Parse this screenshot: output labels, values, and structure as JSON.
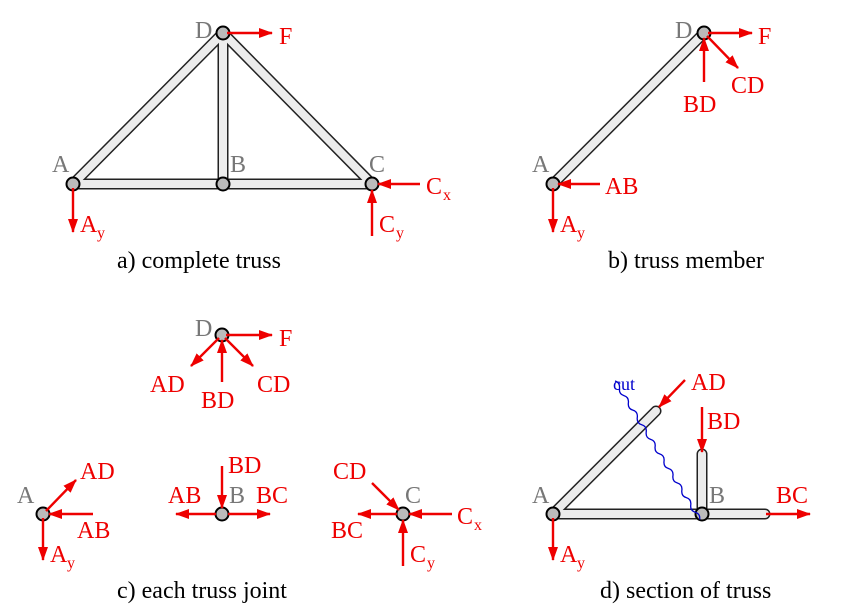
{
  "panel_a": {
    "caption": "a) complete truss",
    "labels": {
      "A": "A",
      "B": "B",
      "C": "C",
      "D": "D"
    },
    "forces": {
      "F": "F",
      "Ay": "A",
      "Ay_sub": "y",
      "Cx": "C",
      "Cx_sub": "x",
      "Cy": "C",
      "Cy_sub": "y"
    }
  },
  "panel_b": {
    "caption": "b) truss member",
    "labels": {
      "A": "A",
      "D": "D"
    },
    "forces": {
      "F": "F",
      "BD": "BD",
      "CD": "CD",
      "AB": "AB",
      "Ay": "A",
      "Ay_sub": "y"
    }
  },
  "panel_c": {
    "caption": "c) each truss joint",
    "labels": {
      "A": "A",
      "B": "B",
      "C": "C",
      "D": "D"
    },
    "forces": {
      "D_F": "F",
      "D_AD": "AD",
      "D_BD": "BD",
      "D_CD": "CD",
      "A_AD": "AD",
      "A_AB": "AB",
      "A_Ay": "A",
      "A_Ay_sub": "y",
      "B_BD": "BD",
      "B_AB": "AB",
      "B_BC": "BC",
      "C_CD": "CD",
      "C_BC": "BC",
      "C_Cx": "C",
      "C_Cx_sub": "x",
      "C_Cy": "C",
      "C_Cy_sub": "y"
    }
  },
  "panel_d": {
    "caption": "d) section of truss",
    "cut_label": "cut",
    "labels": {
      "A": "A",
      "B": "B"
    },
    "forces": {
      "AD": "AD",
      "BD": "BD",
      "BC": "BC",
      "Ay": "A",
      "Ay_sub": "y"
    }
  },
  "colors": {
    "force": "#ee0000",
    "node_label": "#777777",
    "cut_line": "#0000cc"
  }
}
